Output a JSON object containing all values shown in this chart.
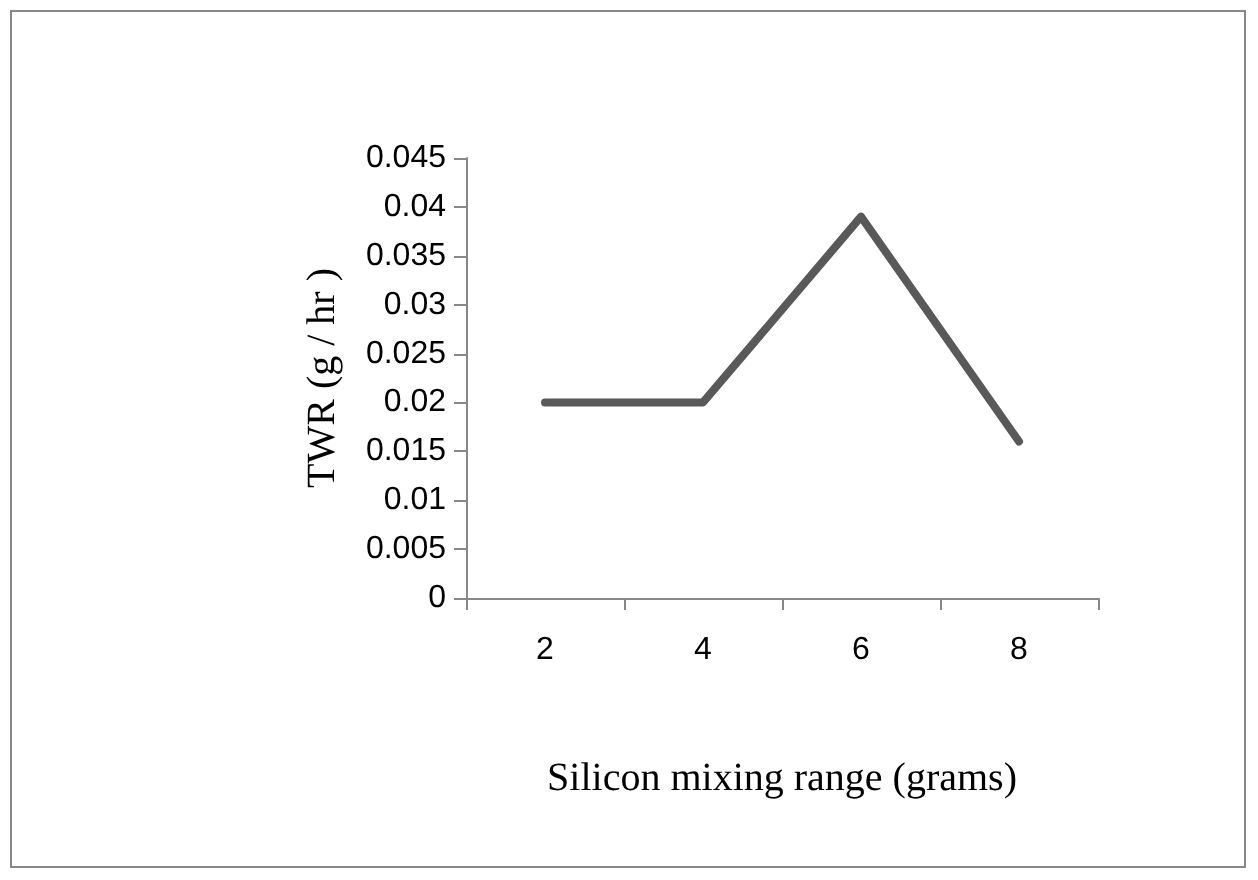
{
  "chart_data": {
    "type": "line",
    "xlabel": "Silicon mixing range (grams)",
    "ylabel": "TWR (g / hr )",
    "categories": [
      "2",
      "4",
      "6",
      "8"
    ],
    "series": [
      {
        "color": "#595959",
        "values": [
          0.02,
          0.02,
          0.039,
          0.016
        ]
      }
    ],
    "ylim": [
      0,
      0.045
    ],
    "yticks": [
      0,
      0.005,
      0.01,
      0.015,
      0.02,
      0.025,
      0.03,
      0.035,
      0.04,
      0.045
    ],
    "grid": false,
    "marker": "none",
    "line_style": "solid"
  }
}
